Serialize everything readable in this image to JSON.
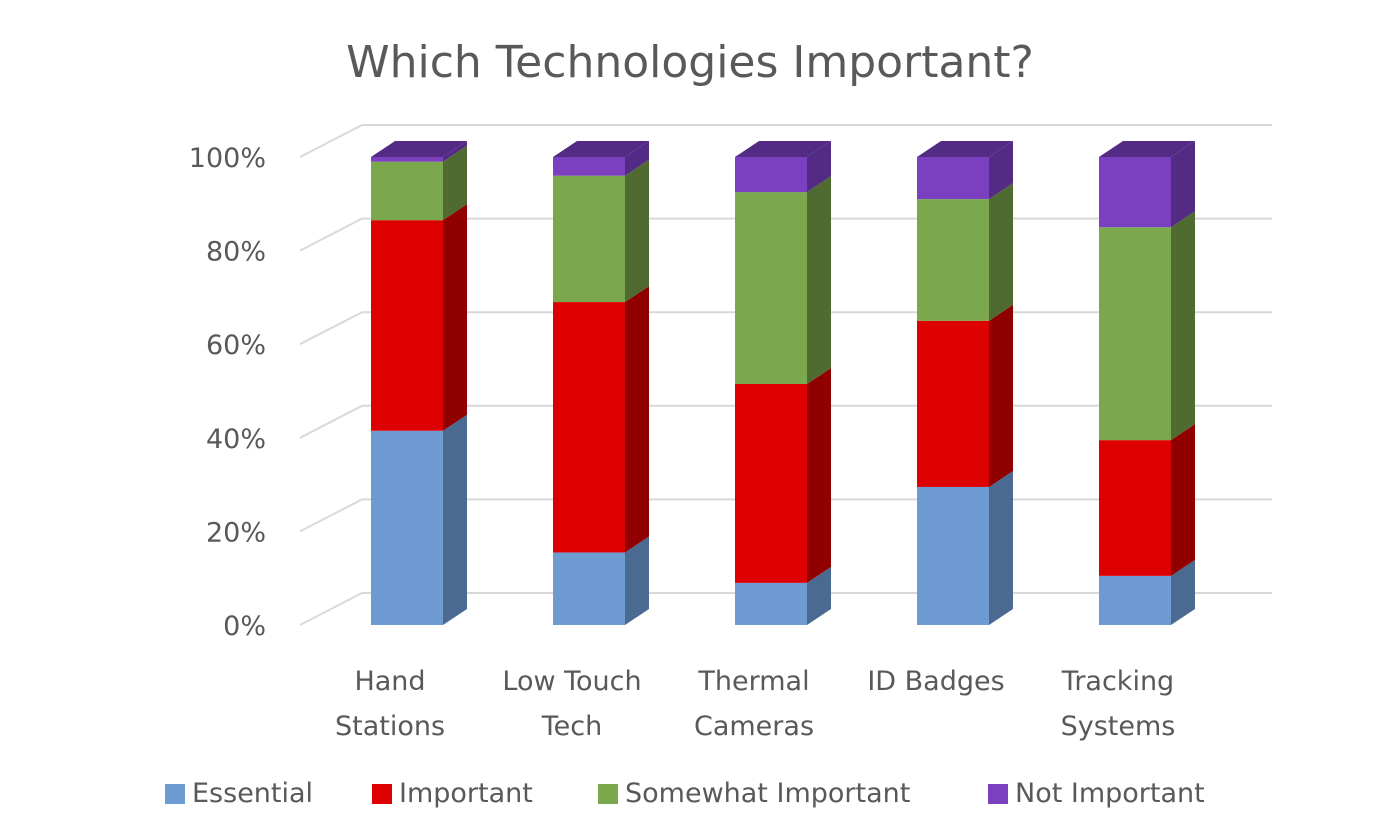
{
  "chart_data": {
    "type": "bar",
    "stacked": true,
    "three_d": true,
    "title": "Which Technologies Important?",
    "xlabel": "",
    "ylabel": "",
    "ylim": [
      0,
      100
    ],
    "y_ticks": [
      "0%",
      "20%",
      "40%",
      "60%",
      "80%",
      "100%"
    ],
    "y_tick_values": [
      0,
      20,
      40,
      60,
      80,
      100
    ],
    "grid": true,
    "legend_position": "bottom",
    "categories": [
      [
        "Hand",
        "Stations"
      ],
      [
        "Low Touch",
        "Tech"
      ],
      [
        "Thermal",
        "Cameras"
      ],
      [
        "ID Badges",
        ""
      ],
      [
        "Tracking",
        "Systems"
      ]
    ],
    "series": [
      {
        "name": "Essential",
        "color": "#6f9bd3",
        "side_color": "#4a6a91",
        "values": [
          41.5,
          15.5,
          9,
          29.5,
          10.5
        ]
      },
      {
        "name": "Important",
        "color": "#dd0000",
        "side_color": "#900000",
        "values": [
          45,
          53.5,
          42.5,
          35.5,
          29
        ]
      },
      {
        "name": "Somewhat Important",
        "color": "#7ba84c",
        "side_color": "#4f6b31",
        "values": [
          12.5,
          27,
          41,
          26,
          45.5
        ]
      },
      {
        "name": "Not Important",
        "color": "#7a40c0",
        "side_color": "#532b85",
        "values": [
          1,
          4,
          7.5,
          9,
          15
        ]
      }
    ]
  }
}
